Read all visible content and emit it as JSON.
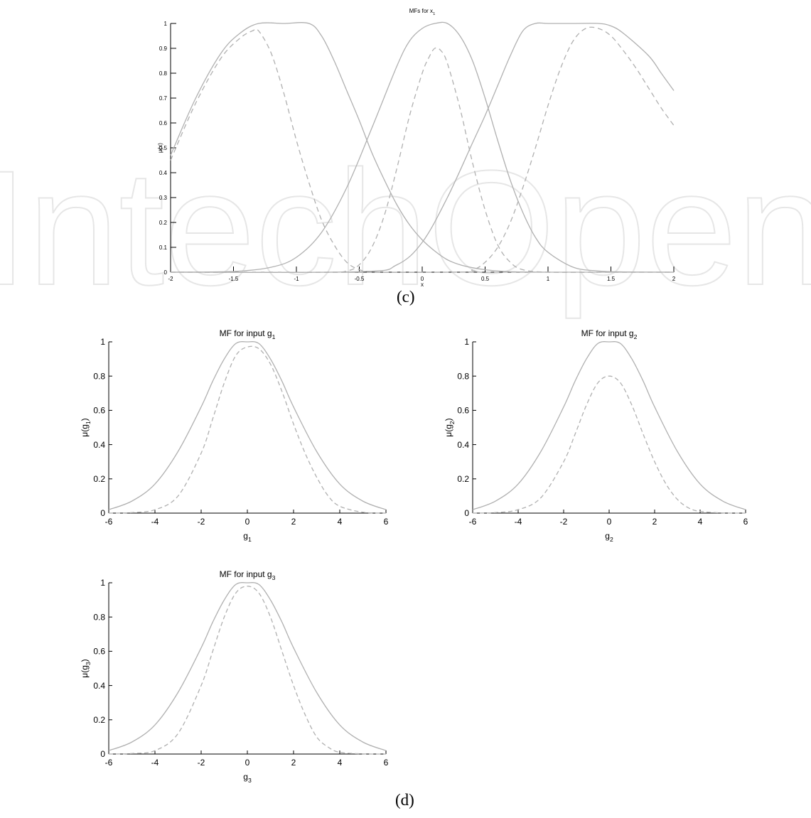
{
  "watermark": {
    "text": "IntechOpen",
    "color": "#e6e6e6"
  },
  "captions": {
    "c": "(c)",
    "d": "(d)"
  },
  "colors": {
    "axis": "#000000",
    "curve": "#b0b0b0",
    "tick": "#000000"
  },
  "chart_data": [
    {
      "id": "x1",
      "type": "line",
      "title_main": "MFs for x",
      "title_sub": "1",
      "xlabel_main": "x",
      "xlabel_sub": "",
      "ylabel_main": "μ(x)",
      "ylabel_sub": "",
      "xlim": [
        -2,
        2
      ],
      "ylim": [
        0,
        1
      ],
      "xticks": [
        -2,
        -1.5,
        -1,
        -0.5,
        0,
        0.5,
        1,
        1.5,
        2
      ],
      "xtick_labels": [
        "-2",
        "-1.5",
        "-1",
        "-0.5",
        "0",
        "0.5",
        "1",
        "1.5",
        "2"
      ],
      "yticks": [
        0,
        0.1,
        0.2,
        0.3,
        0.4,
        0.5,
        0.6,
        0.7,
        0.8,
        0.9,
        1
      ],
      "ytick_labels": [
        "0",
        "0.1",
        "0.2",
        "0.3",
        "0.4",
        "0.5",
        "0.6",
        "0.7",
        "0.8",
        "0.9",
        "1"
      ],
      "grid": false,
      "series": [
        {
          "style": "solid",
          "x": [
            -2,
            -1.8,
            -1.6,
            -1.45,
            -1.3,
            -1.1,
            -0.9,
            -0.8,
            -0.7,
            -0.6,
            -0.5,
            -0.4,
            -0.3,
            -0.2,
            -0.1,
            0,
            0.1,
            0.2,
            0.3,
            0.4,
            0.5,
            0.6,
            0.7,
            0.8,
            1.0,
            1.2,
            1.4,
            1.6,
            1.8,
            2
          ],
          "y": [
            0.47,
            0.7,
            0.88,
            0.96,
            1.0,
            1.0,
            1.0,
            0.95,
            0.85,
            0.73,
            0.61,
            0.48,
            0.37,
            0.27,
            0.19,
            0.13,
            0.085,
            0.05,
            0.03,
            0.018,
            0.01,
            0.005,
            0.002,
            0.001,
            0,
            0,
            0,
            0,
            0,
            0
          ]
        },
        {
          "style": "dashed",
          "x": [
            -2,
            -1.8,
            -1.6,
            -1.45,
            -1.35,
            -1.3,
            -1.2,
            -1.1,
            -1.0,
            -0.9,
            -0.8,
            -0.7,
            -0.6,
            -0.5,
            -0.4,
            -0.3,
            0.0,
            0.5,
            1.0,
            1.5,
            2
          ],
          "y": [
            0.45,
            0.68,
            0.86,
            0.94,
            0.97,
            0.97,
            0.88,
            0.72,
            0.53,
            0.36,
            0.21,
            0.11,
            0.04,
            0.01,
            0.002,
            0,
            0,
            0,
            0,
            0,
            0
          ]
        },
        {
          "style": "solid",
          "x": [
            -2,
            -1.5,
            -1.2,
            -1.0,
            -0.8,
            -0.6,
            -0.4,
            -0.2,
            -0.1,
            0.0,
            0.1,
            0.2,
            0.3,
            0.4,
            0.5,
            0.6,
            0.7,
            0.8,
            0.9,
            1.0,
            1.2,
            1.4,
            1.6,
            2
          ],
          "y": [
            0,
            0.003,
            0.02,
            0.06,
            0.16,
            0.34,
            0.58,
            0.83,
            0.93,
            0.98,
            1.0,
            1.0,
            0.95,
            0.85,
            0.7,
            0.53,
            0.37,
            0.24,
            0.14,
            0.08,
            0.02,
            0.005,
            0.001,
            0
          ]
        },
        {
          "style": "dashed",
          "x": [
            -2,
            -0.8,
            -0.6,
            -0.5,
            -0.4,
            -0.3,
            -0.2,
            -0.1,
            0.0,
            0.05,
            0.1,
            0.15,
            0.2,
            0.3,
            0.4,
            0.5,
            0.6,
            0.7,
            0.8,
            1.0,
            1.5,
            2
          ],
          "y": [
            0,
            0,
            0.005,
            0.03,
            0.1,
            0.23,
            0.42,
            0.63,
            0.8,
            0.86,
            0.9,
            0.89,
            0.84,
            0.66,
            0.44,
            0.25,
            0.11,
            0.04,
            0.01,
            0,
            0,
            0
          ]
        },
        {
          "style": "solid",
          "x": [
            -2,
            -0.5,
            -0.2,
            0.0,
            0.2,
            0.4,
            0.5,
            0.6,
            0.7,
            0.8,
            0.9,
            1.0,
            1.2,
            1.4,
            1.5,
            1.6,
            1.8,
            1.9,
            2
          ],
          "y": [
            0,
            0.002,
            0.03,
            0.12,
            0.3,
            0.52,
            0.63,
            0.75,
            0.87,
            0.97,
            1.0,
            1.0,
            1.0,
            1.0,
            0.99,
            0.96,
            0.87,
            0.8,
            0.73
          ]
        },
        {
          "style": "dashed",
          "x": [
            -2,
            0.2,
            0.4,
            0.5,
            0.6,
            0.7,
            0.8,
            0.9,
            1.0,
            1.1,
            1.2,
            1.3,
            1.4,
            1.5,
            1.6,
            1.7,
            1.8,
            1.9,
            2
          ],
          "y": [
            0,
            0,
            0.01,
            0.04,
            0.1,
            0.2,
            0.34,
            0.5,
            0.67,
            0.82,
            0.93,
            0.98,
            0.98,
            0.95,
            0.89,
            0.82,
            0.74,
            0.66,
            0.59
          ]
        }
      ]
    },
    {
      "id": "g1",
      "type": "line",
      "title_main": "MF for input g",
      "title_sub": "1",
      "xlabel_main": "g",
      "xlabel_sub": "1",
      "ylabel_main": "μ(g",
      "ylabel_sub": "1",
      "ylabel_close": ")",
      "xlim": [
        -6,
        6
      ],
      "ylim": [
        0,
        1
      ],
      "xticks": [
        -6,
        -4,
        -2,
        0,
        2,
        4,
        6
      ],
      "xtick_labels": [
        "-6",
        "-4",
        "-2",
        "0",
        "2",
        "4",
        "6"
      ],
      "yticks": [
        0,
        0.2,
        0.4,
        0.6,
        0.8,
        1
      ],
      "ytick_labels": [
        "0",
        "0.2",
        "0.4",
        "0.6",
        "0.8",
        "1"
      ],
      "grid": false,
      "series": [
        {
          "style": "solid",
          "x": [
            -6,
            -5,
            -4,
            -3,
            -2,
            -1.5,
            -1,
            -0.5,
            0,
            0.5,
            1,
            1.5,
            2,
            3,
            4,
            5,
            6
          ],
          "y": [
            0.02,
            0.07,
            0.17,
            0.36,
            0.62,
            0.77,
            0.9,
            0.99,
            1.0,
            0.99,
            0.9,
            0.77,
            0.62,
            0.36,
            0.17,
            0.07,
            0.02
          ]
        },
        {
          "style": "dashed",
          "x": [
            -6,
            -5,
            -4,
            -3,
            -2,
            -1.5,
            -1,
            -0.5,
            0,
            0.5,
            1,
            1.5,
            2,
            2.5,
            3,
            3.5,
            4,
            5,
            6
          ],
          "y": [
            0,
            0.003,
            0.02,
            0.1,
            0.35,
            0.55,
            0.76,
            0.92,
            0.97,
            0.96,
            0.87,
            0.71,
            0.52,
            0.35,
            0.21,
            0.1,
            0.04,
            0.005,
            0
          ]
        }
      ]
    },
    {
      "id": "g2",
      "type": "line",
      "title_main": "MF for input g",
      "title_sub": "2",
      "xlabel_main": "g",
      "xlabel_sub": "2",
      "ylabel_main": "μ(g",
      "ylabel_sub": "2",
      "ylabel_close": ")",
      "xlim": [
        -6,
        6
      ],
      "ylim": [
        0,
        1
      ],
      "xticks": [
        -6,
        -4,
        -2,
        0,
        2,
        4,
        6
      ],
      "xtick_labels": [
        "-6",
        "-4",
        "-2",
        "0",
        "2",
        "4",
        "6"
      ],
      "yticks": [
        0,
        0.2,
        0.4,
        0.6,
        0.8,
        1
      ],
      "ytick_labels": [
        "0",
        "0.2",
        "0.4",
        "0.6",
        "0.8",
        "1"
      ],
      "grid": false,
      "series": [
        {
          "style": "solid",
          "x": [
            -6,
            -5,
            -4,
            -3,
            -2,
            -1.5,
            -1,
            -0.5,
            0,
            0.5,
            1,
            1.5,
            2,
            3,
            4,
            5,
            6
          ],
          "y": [
            0.02,
            0.07,
            0.17,
            0.36,
            0.62,
            0.77,
            0.9,
            0.99,
            1.0,
            0.99,
            0.9,
            0.77,
            0.62,
            0.36,
            0.17,
            0.07,
            0.02
          ]
        },
        {
          "style": "dashed",
          "x": [
            -6,
            -5,
            -4,
            -3,
            -2,
            -1.5,
            -1,
            -0.5,
            0,
            0.5,
            1,
            1.5,
            2,
            2.5,
            3,
            3.5,
            4,
            5,
            6
          ],
          "y": [
            0,
            0.003,
            0.02,
            0.09,
            0.3,
            0.46,
            0.63,
            0.76,
            0.8,
            0.76,
            0.63,
            0.46,
            0.3,
            0.17,
            0.08,
            0.03,
            0.01,
            0.001,
            0
          ]
        }
      ]
    },
    {
      "id": "g3",
      "type": "line",
      "title_main": "MF for input g",
      "title_sub": "3",
      "xlabel_main": "g",
      "xlabel_sub": "3",
      "ylabel_main": "μ(g",
      "ylabel_sub": "3",
      "ylabel_close": ")",
      "xlim": [
        -6,
        6
      ],
      "ylim": [
        0,
        1
      ],
      "xticks": [
        -6,
        -4,
        -2,
        0,
        2,
        4,
        6
      ],
      "xtick_labels": [
        "-6",
        "-4",
        "-2",
        "0",
        "2",
        "4",
        "6"
      ],
      "yticks": [
        0,
        0.2,
        0.4,
        0.6,
        0.8,
        1
      ],
      "ytick_labels": [
        "0",
        "0.2",
        "0.4",
        "0.6",
        "0.8",
        "1"
      ],
      "grid": false,
      "series": [
        {
          "style": "solid",
          "x": [
            -6,
            -5,
            -4,
            -3,
            -2,
            -1.5,
            -1,
            -0.5,
            0,
            0.5,
            1,
            1.5,
            2,
            3,
            4,
            5,
            6
          ],
          "y": [
            0.02,
            0.07,
            0.17,
            0.36,
            0.62,
            0.77,
            0.9,
            0.99,
            1.0,
            0.99,
            0.9,
            0.77,
            0.62,
            0.36,
            0.17,
            0.07,
            0.02
          ]
        },
        {
          "style": "dashed",
          "x": [
            -6,
            -5,
            -4,
            -3,
            -2,
            -1.5,
            -1,
            -0.5,
            0,
            0.5,
            1,
            1.5,
            2,
            2.5,
            3,
            3.5,
            4,
            5,
            6
          ],
          "y": [
            0,
            0.003,
            0.02,
            0.12,
            0.4,
            0.6,
            0.8,
            0.94,
            0.98,
            0.94,
            0.8,
            0.6,
            0.4,
            0.23,
            0.1,
            0.04,
            0.01,
            0.001,
            0
          ]
        }
      ]
    }
  ]
}
